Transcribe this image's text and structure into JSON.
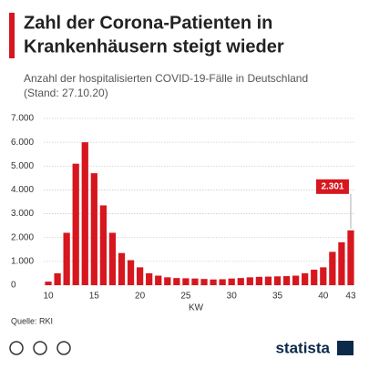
{
  "chart_data": {
    "type": "bar",
    "title_lines": [
      "Zahl der Corona-Patienten in",
      "Krankenhäusern steigt wieder"
    ],
    "subtitle_lines": [
      "Anzahl der hospitalisierten COVID-19-Fälle in Deutschland",
      "(Stand: 27.10.20)"
    ],
    "x_label": "KW",
    "source": "Quelle: RKI",
    "brand": "statista",
    "color": "#d7171f",
    "categories": [
      "10",
      null,
      null,
      null,
      null,
      "15",
      null,
      null,
      null,
      null,
      "20",
      null,
      null,
      null,
      null,
      "25",
      null,
      null,
      null,
      null,
      "30",
      null,
      null,
      null,
      null,
      "35",
      null,
      null,
      null,
      null,
      "40",
      null,
      null,
      "43"
    ],
    "values": [
      150,
      500,
      2200,
      5100,
      6000,
      4700,
      3350,
      2200,
      1350,
      1050,
      750,
      500,
      400,
      330,
      300,
      290,
      280,
      260,
      240,
      250,
      280,
      300,
      330,
      350,
      360,
      370,
      380,
      400,
      500,
      650,
      750,
      1400,
      1800,
      2301
    ],
    "value_labels": [
      null,
      null,
      null,
      null,
      null,
      null,
      null,
      null,
      null,
      null,
      null,
      null,
      null,
      null,
      null,
      null,
      null,
      null,
      null,
      null,
      null,
      null,
      null,
      null,
      null,
      null,
      null,
      null,
      null,
      null,
      null,
      null,
      null,
      "2.301"
    ],
    "ylim": [
      0,
      7000
    ],
    "yticks": [
      0,
      {
        "value": 1000,
        "label": "1.000"
      },
      {
        "value": 2000,
        "label": "2.000"
      },
      {
        "value": 3000,
        "label": "3.000"
      },
      {
        "value": 4000,
        "label": "4.000"
      },
      {
        "value": 5000,
        "label": "5.000"
      },
      {
        "value": 6000,
        "label": "6.000"
      },
      {
        "value": 7000,
        "label": "7.000"
      }
    ],
    "grid": true
  }
}
